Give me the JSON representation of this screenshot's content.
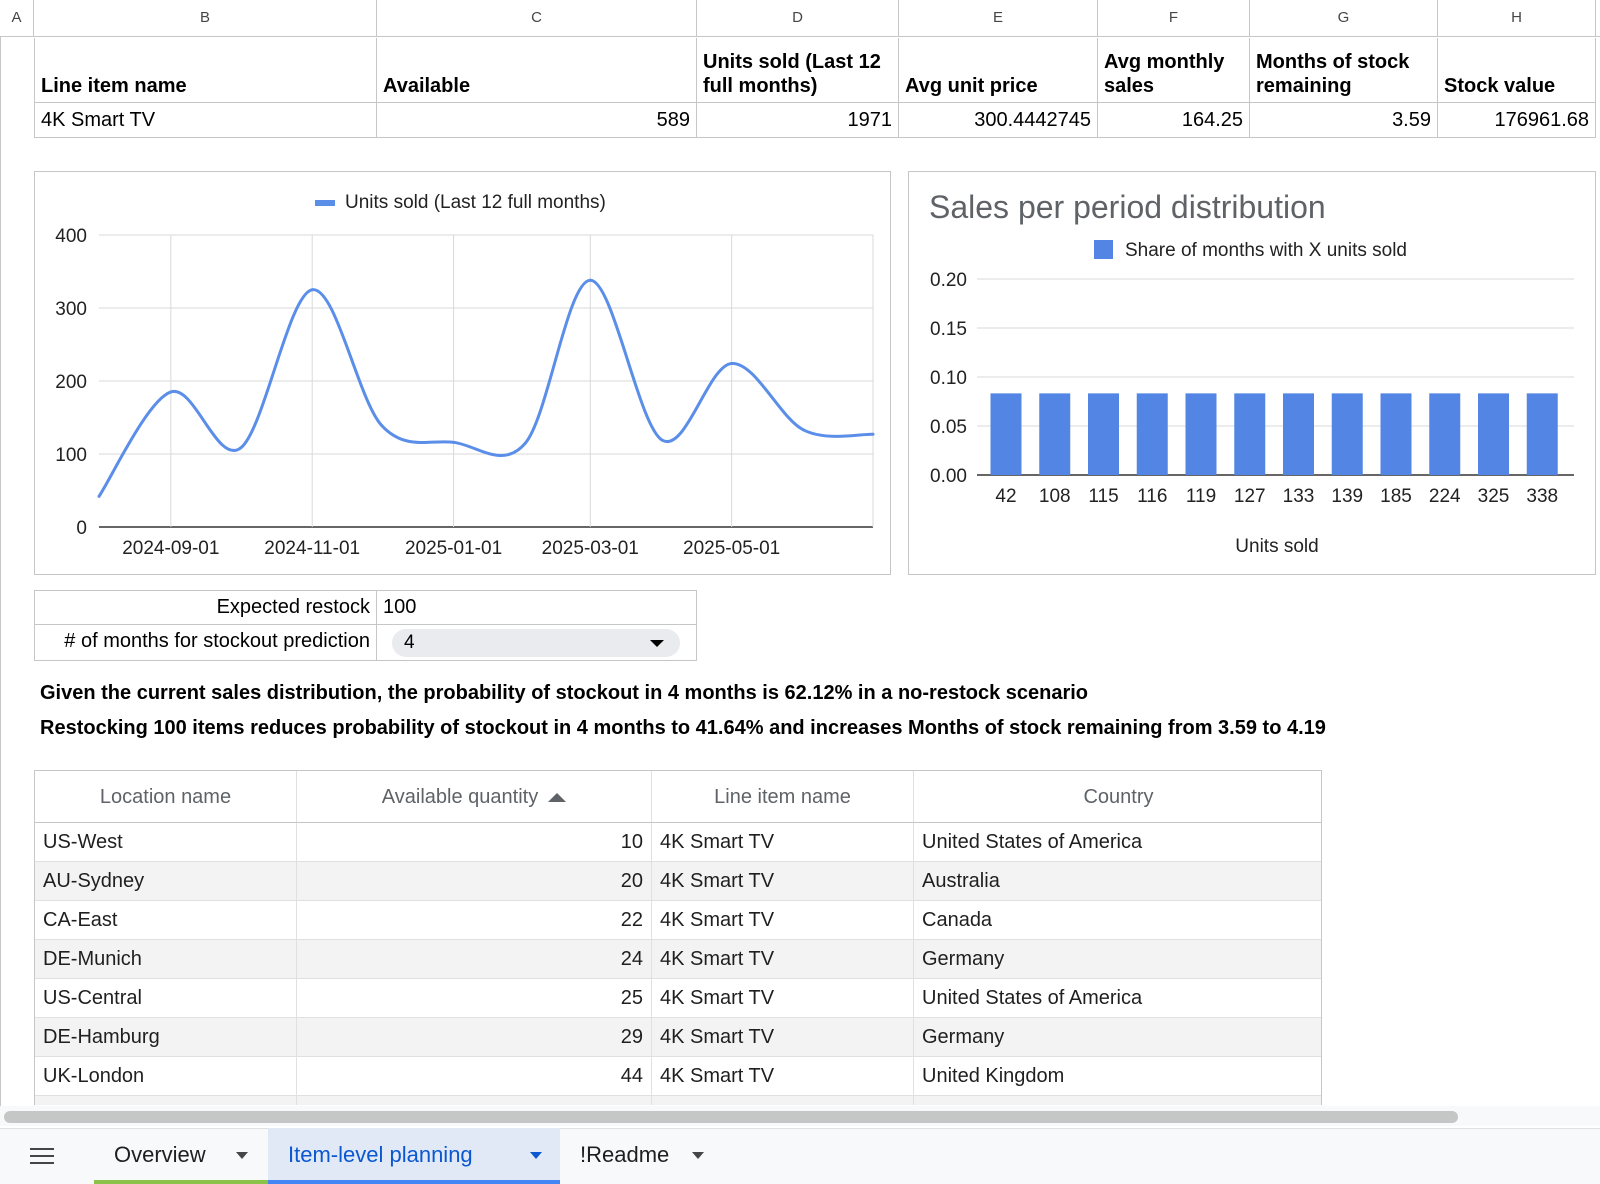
{
  "column_headers": [
    "A",
    "B",
    "C",
    "D",
    "E",
    "F",
    "G",
    "H"
  ],
  "summary_table": {
    "headers": [
      "Line item name",
      "Available",
      "Units sold (Last 12 full months)",
      "Avg unit price",
      "Avg monthly sales",
      "Months of stock remaining",
      "Stock value"
    ],
    "row": [
      "4K Smart TV",
      "589",
      "1971",
      "300.4442745",
      "164.25",
      "3.59",
      "176961.68"
    ]
  },
  "line_chart": {
    "legend": "Units sold (Last 12 full months)",
    "color": "#5b8ee8",
    "y_ticks": [
      "400",
      "300",
      "200",
      "100",
      "0"
    ],
    "x_ticks": [
      "2024-09-01",
      "2024-11-01",
      "2025-01-01",
      "2025-03-01",
      "2025-05-01"
    ]
  },
  "bar_chart": {
    "title": "Sales per period distribution",
    "legend": "Share of months with X units sold",
    "color": "#5386e4",
    "y_ticks": [
      "0.20",
      "0.15",
      "0.10",
      "0.05",
      "0.00"
    ],
    "xlabel": "Units sold"
  },
  "chart_data": [
    {
      "type": "line",
      "title": "",
      "xlabel": "",
      "ylabel": "",
      "ylim": [
        0,
        400
      ],
      "grid": true,
      "legend_position": "top",
      "x": [
        "2024-08-01",
        "2024-09-01",
        "2024-10-01",
        "2024-11-01",
        "2024-12-01",
        "2025-01-01",
        "2025-02-01",
        "2025-03-01",
        "2025-04-01",
        "2025-05-01",
        "2025-06-01",
        "2025-07-01"
      ],
      "series": [
        {
          "name": "Units sold (Last 12 full months)",
          "values": [
            42,
            185,
            108,
            325,
            139,
            116,
            115,
            338,
            119,
            224,
            133,
            127
          ]
        }
      ]
    },
    {
      "type": "bar",
      "title": "Sales per period distribution",
      "xlabel": "Units sold",
      "ylabel": "",
      "ylim": [
        0,
        0.2
      ],
      "grid": true,
      "legend_position": "top",
      "categories": [
        "42",
        "108",
        "115",
        "116",
        "119",
        "127",
        "133",
        "139",
        "185",
        "224",
        "325",
        "338"
      ],
      "series": [
        {
          "name": "Share of months with X units sold",
          "values": [
            0.0833,
            0.0833,
            0.0833,
            0.0833,
            0.0833,
            0.0833,
            0.0833,
            0.0833,
            0.0833,
            0.0833,
            0.0833,
            0.0833
          ]
        }
      ]
    }
  ],
  "restock": {
    "expected_label": "Expected restock",
    "expected_value": "100",
    "months_label": "# of months for stockout prediction",
    "months_value": "4"
  },
  "messages": {
    "line1": "Given the current sales distribution, the probability of stockout in 4 months is 62.12% in a no-restock scenario",
    "line2": "Restocking 100 items reduces probability of stockout in 4 months to 41.64% and increases Months of stock remaining from 3.59 to 4.19"
  },
  "location_table": {
    "headers": [
      "Location name",
      "Available quantity",
      "Line item name",
      "Country"
    ],
    "rows": [
      [
        "US-West",
        "10",
        "4K Smart TV",
        "United States of America"
      ],
      [
        "AU-Sydney",
        "20",
        "4K Smart TV",
        "Australia"
      ],
      [
        "CA-East",
        "22",
        "4K Smart TV",
        "Canada"
      ],
      [
        "DE-Munich",
        "24",
        "4K Smart TV",
        "Germany"
      ],
      [
        "US-Central",
        "25",
        "4K Smart TV",
        "United States of America"
      ],
      [
        "DE-Hamburg",
        "29",
        "4K Smart TV",
        "Germany"
      ],
      [
        "UK-London",
        "44",
        "4K Smart TV",
        "United Kingdom"
      ]
    ]
  },
  "tabs": [
    {
      "label": "Overview",
      "active": false,
      "color": "#8bc34a"
    },
    {
      "label": "Item-level planning",
      "active": true,
      "color": "#4285f4"
    },
    {
      "label": "!Readme",
      "active": false,
      "color": ""
    }
  ]
}
